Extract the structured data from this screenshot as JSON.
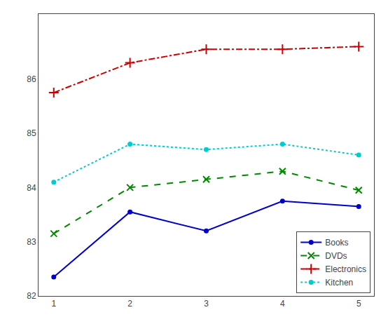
{
  "chart_data": {
    "type": "line",
    "x": [
      1,
      2,
      3,
      4,
      5
    ],
    "series": [
      {
        "name": "Books",
        "color": "#0000cc",
        "values": [
          82.35,
          83.55,
          83.2,
          83.75,
          83.65
        ],
        "marker": "circle",
        "line_style": "solid"
      },
      {
        "name": "DVDs",
        "color": "#008800",
        "values": [
          83.15,
          84.0,
          84.15,
          84.3,
          83.95
        ],
        "marker": "x",
        "line_style": "dash"
      },
      {
        "name": "Electronics",
        "color": "#cc0000",
        "values": [
          85.75,
          86.3,
          86.55,
          86.55,
          86.6
        ],
        "marker": "plus",
        "line_style": "dashdot"
      },
      {
        "name": "Kitchen",
        "color": "#00cccc",
        "values": [
          84.1,
          84.8,
          84.7,
          84.8,
          84.6
        ],
        "marker": "circle",
        "line_style": "dot"
      }
    ],
    "xlim": [
      0.8,
      5.2
    ],
    "ylim": [
      82,
      87.2
    ],
    "xticks": [
      1,
      2,
      3,
      4,
      5
    ],
    "yticks": [
      82,
      83,
      84,
      85,
      86
    ],
    "grid": false,
    "legend": "lower right"
  }
}
